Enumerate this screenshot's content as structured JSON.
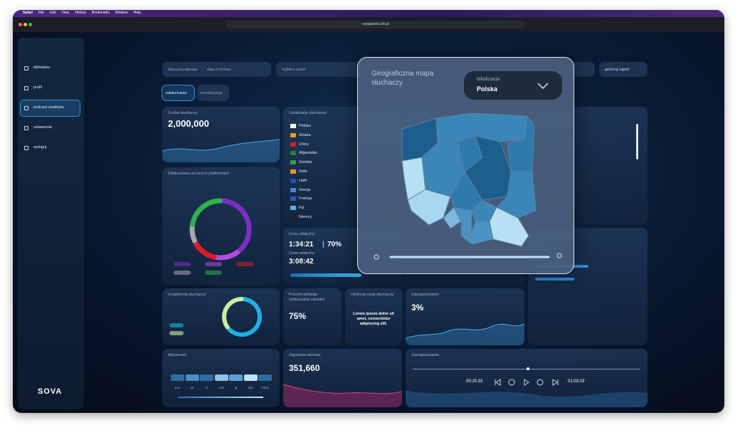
{
  "menu_bar": {
    "items": [
      "Safari",
      "File",
      "Edit",
      "View",
      "History",
      "Bookmarks",
      "Window",
      "Help"
    ]
  },
  "browser": {
    "url": "sovapanel.cdn.pl"
  },
  "sidebar": {
    "items": [
      "biblioteka",
      "profil",
      "podcast analityka",
      "ustawienia",
      "wyloguj"
    ],
    "logo": "SOVA"
  },
  "filters": {
    "start_date": "data początkowa",
    "end_date": "data końcowa",
    "select": "wybierz audio",
    "report": "generuj raport"
  },
  "tabs": [
    "odsłuchania",
    "monetyzacja"
  ],
  "cards": {
    "listeners": {
      "title": "Liczba słuchaczy",
      "value": "2,000,000"
    },
    "platforms": {
      "title": "Odsłuchania na innych platformach",
      "values": [
        35,
        12,
        13,
        8,
        20
      ],
      "colors": [
        "#7b2fc4",
        "#b04ce0",
        "#e01a2a",
        "#a4a9b0",
        "#2fb24e"
      ]
    },
    "locations": {
      "title": "Lokalizacje słuchaczy",
      "countries": [
        "Polska",
        "Ghana",
        "Chiny",
        "Afganistan",
        "Zambia",
        "Indie",
        "Haiti",
        "Grecja",
        "Francja",
        "Fiji",
        "Niemcy"
      ]
    },
    "listen_time": {
      "title": "Czas odsłuchu",
      "value": "1:34:21",
      "percent": "70%",
      "subtitle": "Czas odsłuchu",
      "value2": "3:08:42"
    },
    "devices": {
      "title": "Urządzenia słuchaczy",
      "values": [
        65,
        35
      ],
      "colors": [
        "#1fb0e8",
        "#c8f0a0"
      ]
    },
    "completion": {
      "title": "Procent pełnego odsłuchania odcinka",
      "value": "75%"
    },
    "quote": {
      "title": "Ulubiony cytat słuchaczy",
      "text": "Lorem ipsum dolor sit amet, consectetur adipiscing elit."
    },
    "engagement": {
      "title": "Zaangażowanie",
      "value": "3%"
    },
    "activity": {
      "title": "Aktywność",
      "days": [
        "pon",
        "wt",
        "śr",
        "czw",
        "pt",
        "sob",
        "niedz"
      ]
    },
    "saves": {
      "title": "Zapisania odcinka",
      "value": "351,660"
    },
    "player": {
      "title": "Zaangażowanie",
      "current": "00:20:33",
      "total": "01:03:23"
    }
  },
  "map_panel": {
    "title": "Geograficzna mapa słuchaczy",
    "dropdown_label": "lokalizacja",
    "dropdown_value": "Polska"
  }
}
